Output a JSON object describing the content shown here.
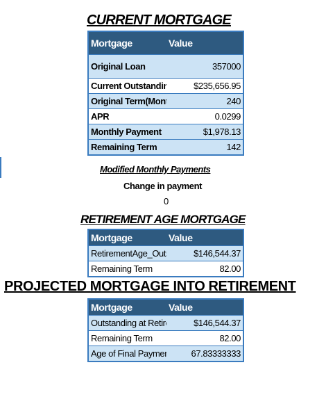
{
  "current": {
    "title": "CURRENT MORTGAGE",
    "header": {
      "col1": "Mortgage",
      "col2": "Value"
    },
    "rows": [
      {
        "label": "Original Loan",
        "value": "357000"
      },
      {
        "label": "Current Outstanding",
        "value": "$235,656.95"
      },
      {
        "label": "Original Term(Months)",
        "value": "240"
      },
      {
        "label": "APR",
        "value": "0.0299"
      },
      {
        "label": "Monthly Payment",
        "value": "$1,978.13"
      },
      {
        "label": "Remaining Term",
        "value": "142"
      }
    ]
  },
  "modified": {
    "title": "Modified Monthly Payments",
    "change_label": "Change in payment",
    "change_value": "0"
  },
  "retirement": {
    "title": "RETIREMENT AGE MORTGAGE",
    "header": {
      "col1": "Mortgage",
      "col2": "Value"
    },
    "rows": [
      {
        "label": "RetirementAge_Outstanding",
        "value": "$146,544.37"
      },
      {
        "label": "Remaining Term",
        "value": "82.00"
      }
    ]
  },
  "projected": {
    "title": "PROJECTED MORTGAGE INTO RETIREMENT",
    "header": {
      "col1": "Mortgage",
      "col2": "Value"
    },
    "rows": [
      {
        "label": "Outstanding at Retirement",
        "value": "$146,544.37"
      },
      {
        "label": "Remaining Term",
        "value": "82.00"
      },
      {
        "label": "Age of Final Payment",
        "value": "67.83333333"
      }
    ]
  }
}
